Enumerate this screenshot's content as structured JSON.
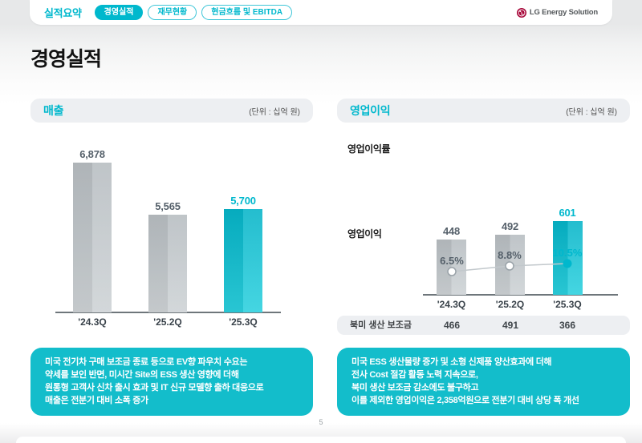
{
  "colors": {
    "accent": "#00b8cd",
    "callout_bg": "#13bdcb",
    "bar_gray": "#c3c9cd",
    "logo_red": "#a50034"
  },
  "brand": {
    "logo_text": "LG Energy Solution"
  },
  "nav": {
    "section_label": "실적요약",
    "tabs": [
      {
        "label": "경영실적",
        "active": true
      },
      {
        "label": "재무현황",
        "active": false
      },
      {
        "label": "현금흐름 및 EBITDA",
        "active": false
      }
    ]
  },
  "page": {
    "title": "경영실적",
    "number": "5"
  },
  "left_panel": {
    "header": {
      "title": "매출",
      "unit": "(단위 : 십억 원)"
    },
    "callout_lines": [
      "미국 전기차 구매 보조금 종료 등으로 EV향 파우치 수요는",
      "약세를 보인 반면, 미시간 Site의 ESS 생산 영향에 더해",
      "원통형 고객사 신차 출시 효과 및 IT 신규 모델향 출하 대응으로",
      "매출은 전분기 대비 소폭 증가"
    ]
  },
  "right_panel": {
    "header": {
      "title": "영업이익",
      "unit": "(단위 : 십억 원)"
    },
    "margin_label": "영업이익률",
    "profit_label": "영업이익",
    "callout_lines": [
      "미국 ESS 생산물량 증가 및 소형 신제품 양산효과에 더해",
      "전사 Cost 절감 활동 노력 지속으로,",
      "북미 생산 보조금 감소에도 불구하고",
      "이를 제외한 영업이익은 2,358억원으로 전분기 대비 상당 폭 개선"
    ]
  },
  "chart_data": [
    {
      "type": "bar",
      "title": "매출",
      "unit": "십억 원",
      "categories": [
        "'24.3Q",
        "'25.2Q",
        "'25.3Q"
      ],
      "values": [
        6878,
        5565,
        5700
      ],
      "labels": [
        "6,878",
        "5,565",
        "5,700"
      ],
      "highlight_index": 2,
      "ylim": [
        3100,
        7000
      ],
      "grid": false,
      "legend": "none"
    },
    {
      "type": "line",
      "title": "영업이익률",
      "categories": [
        "'24.3Q",
        "'25.2Q",
        "'25.3Q"
      ],
      "values": [
        6.5,
        8.8,
        10.5
      ],
      "labels": [
        "6.5%",
        "8.8%",
        "10.5%"
      ],
      "highlight_index": 2,
      "grid": false,
      "legend": "none"
    },
    {
      "type": "bar",
      "title": "영업이익",
      "unit": "십억 원",
      "categories": [
        "'24.3Q",
        "'25.2Q",
        "'25.3Q"
      ],
      "values": [
        448,
        492,
        601
      ],
      "labels": [
        "448",
        "492",
        "601"
      ],
      "highlight_index": 2,
      "ylim": [
        0,
        650
      ],
      "grid": false,
      "legend": "none"
    },
    {
      "type": "table",
      "title": "북미 생산 보조금",
      "categories": [
        "'24.3Q",
        "'25.2Q",
        "'25.3Q"
      ],
      "values": [
        466,
        491,
        366
      ]
    }
  ]
}
